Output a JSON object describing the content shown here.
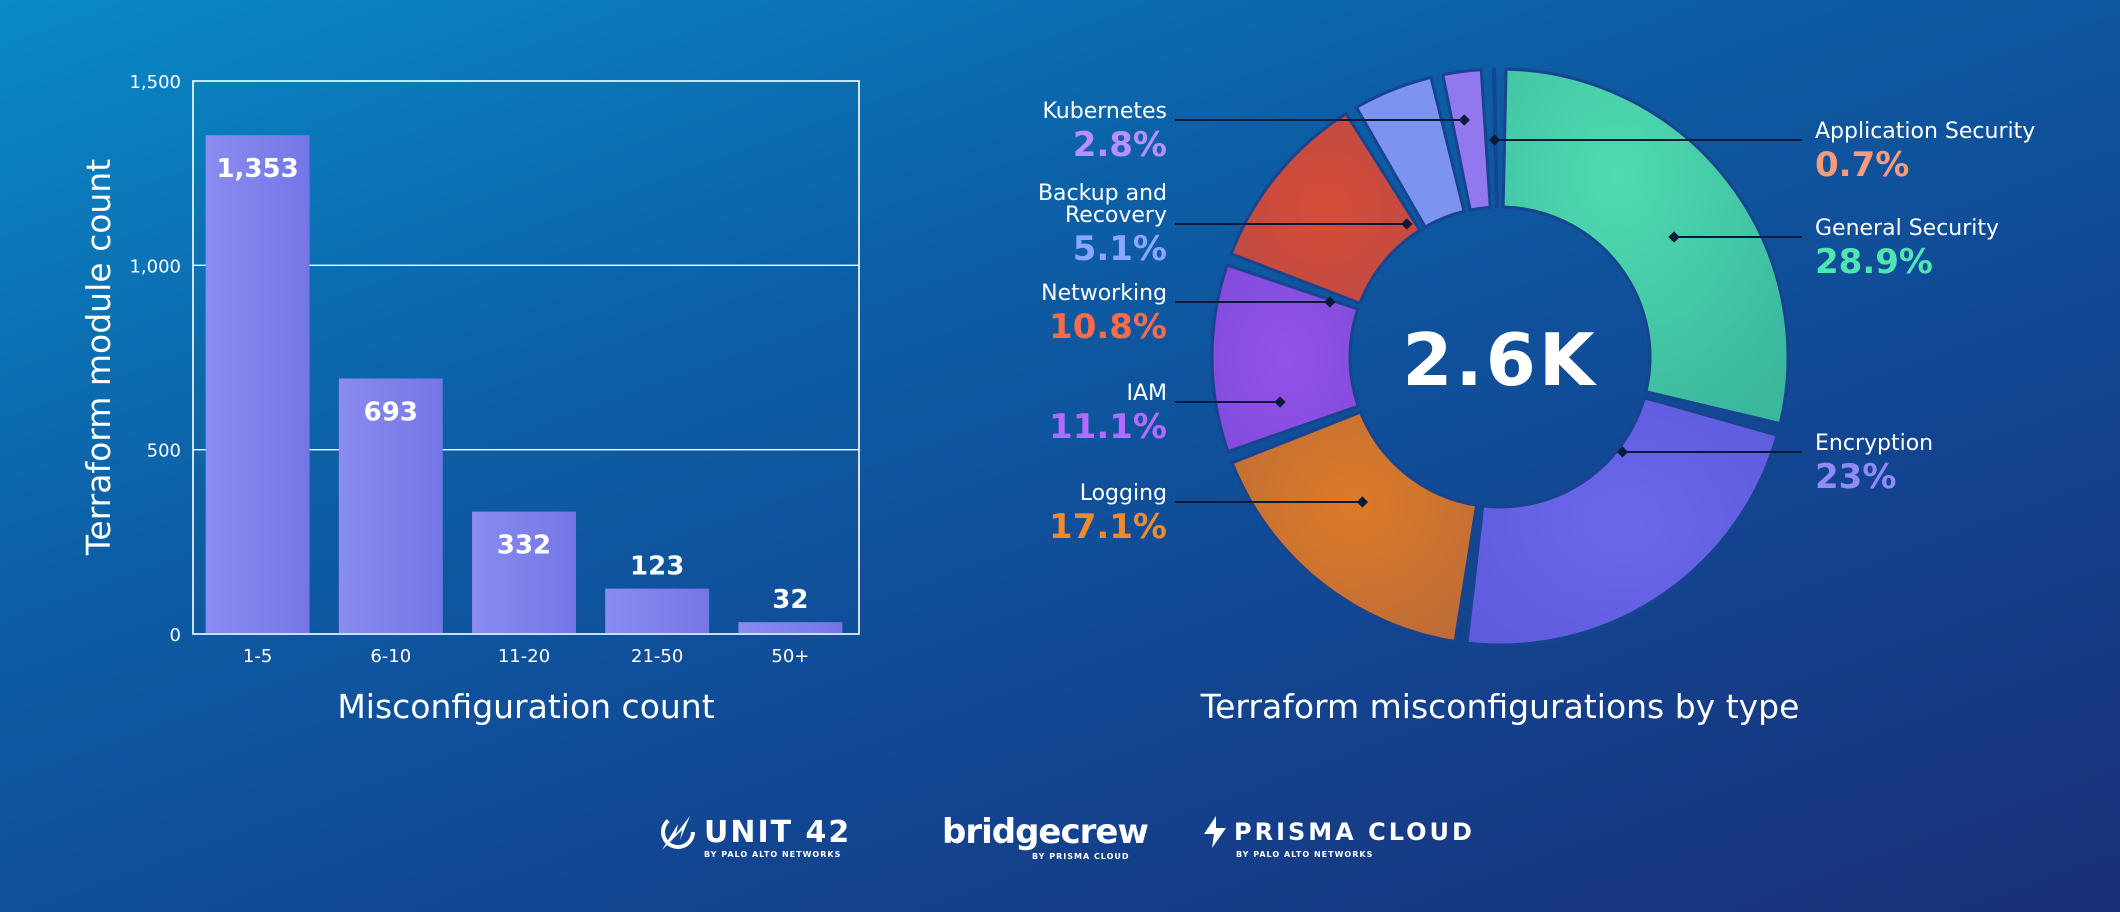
{
  "chart_data": [
    {
      "type": "bar",
      "categories": [
        "1-5",
        "6-10",
        "11-20",
        "21-50",
        "50+"
      ],
      "values": [
        1353,
        693,
        332,
        123,
        32
      ],
      "data_labels": [
        "1,353",
        "693",
        "332",
        "123",
        "32"
      ],
      "xlabel": "Misconfiguration count",
      "ylabel": "Terraform module count",
      "ylim": [
        0,
        1500
      ],
      "yticks": [
        0,
        500,
        1000,
        1500
      ],
      "ytick_labels": [
        "0",
        "500",
        "1,000",
        "1,500"
      ],
      "grid": true,
      "bar_color": "#7f80ee"
    },
    {
      "type": "pie",
      "donut": true,
      "center_label": "2.6K",
      "title": "Terraform misconfigurations by type",
      "slices": [
        {
          "label": "General Security",
          "value": 28.9,
          "display": "28.9%",
          "color": "#45d3a6",
          "label_color": "#4ee6b3"
        },
        {
          "label": "Encryption",
          "value": 23.0,
          "display": "23%",
          "color": "#6a64e8",
          "label_color": "#8f8bff"
        },
        {
          "label": "Logging",
          "value": 17.1,
          "display": "17.1%",
          "color": "#d2782b",
          "label_color": "#f08a2b"
        },
        {
          "label": "IAM",
          "value": 11.1,
          "display": "11.1%",
          "color": "#8e54e6",
          "label_color": "#b26cff"
        },
        {
          "label": "Networking",
          "value": 10.8,
          "display": "10.8%",
          "color": "#cf4c3c",
          "label_color": "#ff6a4a"
        },
        {
          "label": "Backup and Recovery",
          "value": 5.1,
          "display": "5.1%",
          "color": "#7d93f0",
          "label_color": "#8aa6ff"
        },
        {
          "label": "Kubernetes",
          "value": 2.8,
          "display": "2.8%",
          "color": "#9278ee",
          "label_color": "#b890ff"
        },
        {
          "label": "Application Security",
          "value": 0.7,
          "display": "0.7%",
          "color": "#c08a90",
          "label_color": "#ff9a7a"
        }
      ]
    }
  ],
  "logos": {
    "unit42": "UNIT 42",
    "unit42_sub": "BY PALO ALTO NETWORKS",
    "bridgecrew": "bridgecrew",
    "bridgecrew_sub": "BY PRISMA CLOUD",
    "prisma": "PRISMA CLOUD",
    "prisma_sub": "BY PALO ALTO NETWORKS"
  }
}
